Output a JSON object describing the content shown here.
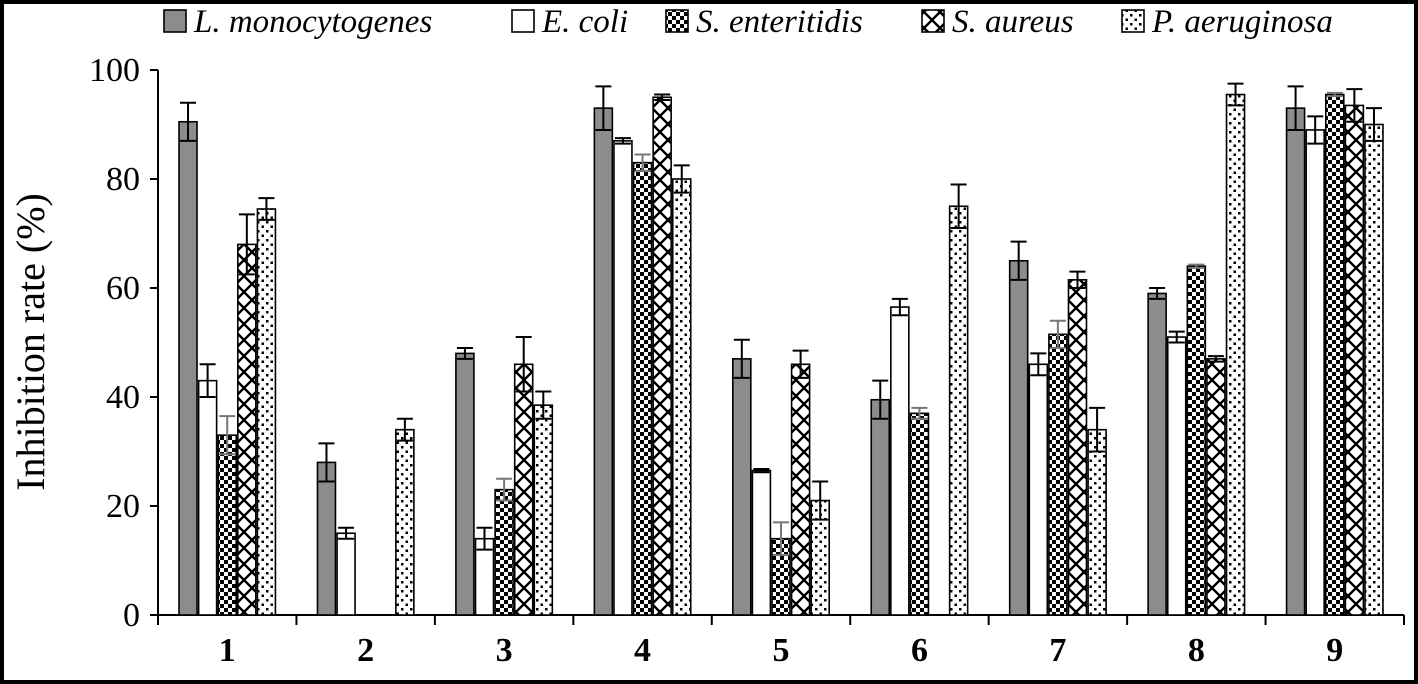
{
  "chart_data": {
    "type": "bar",
    "title": "",
    "xlabel": "",
    "ylabel": "Inhibition rate (%)",
    "ylim": [
      0,
      100
    ],
    "yticks": [
      "0",
      "20",
      "40",
      "60",
      "80",
      "100"
    ],
    "categories": [
      "1",
      "2",
      "3",
      "4",
      "5",
      "6",
      "7",
      "8",
      "9"
    ],
    "legend_position": "top",
    "grid": false,
    "series": [
      {
        "name": "L. monocytogenes",
        "pattern": "solid-gray",
        "values": [
          90.5,
          28.0,
          48.0,
          93.0,
          47.0,
          39.5,
          65.0,
          59.0,
          93.0
        ],
        "errors": [
          3.5,
          3.5,
          1.0,
          4.0,
          3.5,
          3.5,
          3.5,
          1.0,
          4.0
        ]
      },
      {
        "name": "E. coli",
        "pattern": "white",
        "values": [
          43.0,
          15.0,
          14.0,
          87.0,
          26.5,
          56.5,
          46.0,
          51.0,
          89.0
        ],
        "errors": [
          3.0,
          1.0,
          2.0,
          0.5,
          0.3,
          1.5,
          2.0,
          1.0,
          2.5
        ]
      },
      {
        "name": "S. enteritidis",
        "pattern": "dense-check",
        "values": [
          33.0,
          0,
          23.0,
          83.0,
          14.0,
          37.0,
          51.5,
          64.0,
          95.5
        ],
        "errors": [
          3.5,
          0,
          2.0,
          1.5,
          3.0,
          1.0,
          2.5,
          0.3,
          0.3
        ]
      },
      {
        "name": "S. aureus",
        "pattern": "diamond-lattice",
        "values": [
          68.0,
          0,
          46.0,
          95.0,
          46.0,
          0,
          61.5,
          47.0,
          93.5
        ],
        "errors": [
          5.5,
          0,
          5.0,
          0.5,
          2.5,
          0,
          1.5,
          0.5,
          3.0
        ]
      },
      {
        "name": "P. aeruginosa",
        "pattern": "sparse-dots",
        "values": [
          74.5,
          34.0,
          38.5,
          80.0,
          21.0,
          75.0,
          34.0,
          95.5,
          90.0
        ],
        "errors": [
          2.0,
          2.0,
          2.5,
          2.5,
          3.5,
          4.0,
          4.0,
          2.0,
          3.0
        ]
      }
    ]
  }
}
